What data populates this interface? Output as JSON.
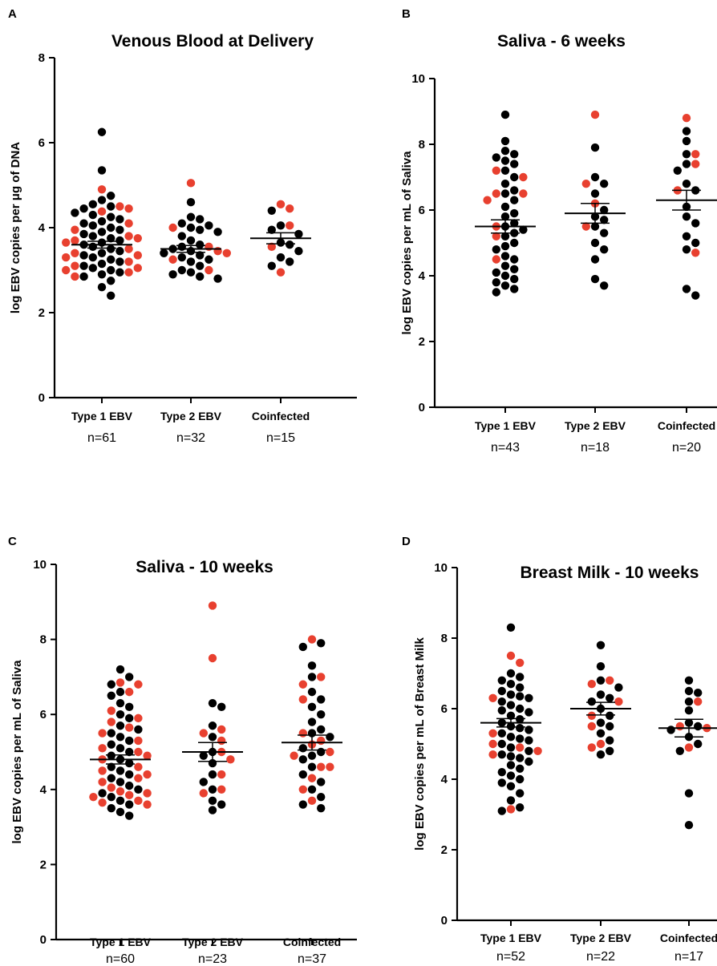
{
  "colors": {
    "black": "#000000",
    "red": "#e8402f"
  },
  "chart_data": [
    {
      "type": "scatter",
      "panel": "A",
      "title": "Venous Blood at Delivery",
      "ylabel": "log EBV copies per μg of DNA",
      "ylim": [
        0,
        8
      ],
      "yticks": [
        0,
        2,
        4,
        6,
        8
      ],
      "categories": [
        "Type 1 EBV",
        "Type 2 EBV",
        "Coinfected"
      ],
      "n_labels": [
        "n=61",
        "n=32",
        "n=15"
      ],
      "means": [
        3.6,
        3.5,
        3.75
      ],
      "sems": [
        0.08,
        0.08,
        0.13
      ],
      "groups": [
        {
          "black": [
            6.25,
            5.35,
            4.75,
            4.65,
            4.55,
            4.5,
            4.45,
            4.35,
            4.3,
            4.25,
            4.2,
            4.15,
            4.1,
            4.05,
            4.0,
            3.95,
            3.9,
            3.85,
            3.8,
            3.75,
            3.7,
            3.65,
            3.6,
            3.55,
            3.5,
            3.45,
            3.4,
            3.35,
            3.3,
            3.25,
            3.2,
            3.15,
            3.1,
            3.05,
            3.0,
            2.95,
            2.9,
            2.85,
            2.75,
            2.6,
            2.4
          ],
          "red": [
            4.9,
            4.5,
            4.45,
            4.38,
            4.1,
            3.95,
            3.8,
            3.75,
            3.7,
            3.65,
            3.5,
            3.4,
            3.3,
            3.2,
            3.1,
            3.05,
            3.0,
            2.95,
            2.85,
            3.35
          ]
        },
        {
          "black": [
            4.6,
            4.25,
            4.2,
            4.1,
            4.05,
            4.0,
            3.95,
            3.9,
            3.8,
            3.7,
            3.6,
            3.55,
            3.5,
            3.45,
            3.4,
            3.35,
            3.3,
            3.25,
            3.2,
            3.1,
            3.0,
            2.95,
            2.9,
            2.85,
            2.8
          ],
          "red": [
            5.05,
            4.0,
            3.55,
            3.45,
            3.4,
            3.25,
            3.0
          ]
        },
        {
          "black": [
            4.4,
            4.05,
            3.95,
            3.85,
            3.65,
            3.6,
            3.45,
            3.3,
            3.2,
            3.1
          ],
          "red": [
            4.55,
            4.45,
            4.05,
            3.55,
            2.95
          ]
        }
      ]
    },
    {
      "type": "scatter",
      "panel": "B",
      "title": "Saliva - 6 weeks",
      "ylabel": "log EBV copies per mL of Saliva",
      "ylim": [
        0,
        10
      ],
      "yticks": [
        0,
        2,
        4,
        6,
        8,
        10
      ],
      "categories": [
        "Type 1 EBV",
        "Type 2 EBV",
        "Coinfected"
      ],
      "n_labels": [
        "n=43",
        "n=18",
        "n=20"
      ],
      "means": [
        5.5,
        5.9,
        6.3
      ],
      "sems": [
        0.2,
        0.3,
        0.3
      ],
      "groups": [
        {
          "black": [
            8.9,
            8.1,
            7.8,
            7.7,
            7.6,
            7.5,
            7.4,
            7.2,
            7.0,
            6.8,
            6.6,
            6.5,
            6.3,
            6.1,
            5.9,
            5.8,
            5.6,
            5.5,
            5.4,
            5.3,
            5.2,
            5.0,
            4.9,
            4.8,
            4.6,
            4.5,
            4.3,
            4.2,
            4.1,
            4.0,
            3.9,
            3.8,
            3.7,
            3.6,
            3.5
          ],
          "red": [
            7.2,
            7.0,
            6.5,
            6.3,
            5.5,
            4.5,
            5.2,
            6.5
          ]
        },
        {
          "black": [
            7.9,
            7.0,
            6.8,
            6.5,
            6.0,
            5.8,
            5.7,
            5.5,
            5.3,
            5.0,
            4.8,
            4.5,
            3.9,
            3.7
          ],
          "red": [
            8.9,
            6.8,
            6.2,
            5.5
          ]
        },
        {
          "black": [
            8.4,
            8.1,
            7.7,
            7.4,
            7.2,
            6.8,
            6.6,
            6.1,
            5.8,
            5.6,
            5.2,
            5.0,
            4.8,
            3.6,
            3.4
          ],
          "red": [
            8.8,
            7.7,
            7.4,
            6.6,
            4.7
          ]
        }
      ]
    },
    {
      "type": "scatter",
      "panel": "C",
      "title": "Saliva - 10 weeks",
      "ylabel": "log EBV copies per mL of Saliva",
      "ylim": [
        0,
        10
      ],
      "yticks": [
        0,
        2,
        4,
        6,
        8,
        10
      ],
      "categories": [
        "Type 1 EBV",
        "Type 2 EBV",
        "Coinfected"
      ],
      "n_labels": [
        "n=60",
        "n=23",
        "n=37"
      ],
      "means": [
        4.8,
        5.0,
        5.25
      ],
      "sems": [
        0.12,
        0.25,
        0.2
      ],
      "groups": [
        {
          "black": [
            7.2,
            7.0,
            6.8,
            6.6,
            6.5,
            6.3,
            6.2,
            6.0,
            5.9,
            5.7,
            5.6,
            5.5,
            5.4,
            5.3,
            5.2,
            5.1,
            5.0,
            4.9,
            4.8,
            4.7,
            4.6,
            4.5,
            4.4,
            4.3,
            4.2,
            4.1,
            4.0,
            3.9,
            3.8,
            3.7,
            3.6,
            3.5,
            3.4,
            3.3
          ],
          "red": [
            6.85,
            6.8,
            6.6,
            6.1,
            5.8,
            5.65,
            5.3,
            5.1,
            5.0,
            4.8,
            4.6,
            4.4,
            4.2,
            4.05,
            3.9,
            3.8,
            3.7,
            3.6,
            3.95,
            4.5,
            5.5,
            4.3,
            3.85,
            4.9,
            5.9,
            3.65
          ]
        },
        {
          "black": [
            6.3,
            6.2,
            5.7,
            5.4,
            5.0,
            4.9,
            4.7,
            4.4,
            4.2,
            4.0,
            3.7,
            3.6,
            3.45
          ],
          "red": [
            8.9,
            7.5,
            5.6,
            5.5,
            5.3,
            5.0,
            4.8,
            4.4,
            4.0,
            3.9
          ]
        },
        {
          "black": [
            7.9,
            7.8,
            7.3,
            7.0,
            6.6,
            6.4,
            6.2,
            6.0,
            5.8,
            5.6,
            5.5,
            5.4,
            5.1,
            5.0,
            4.9,
            4.8,
            4.6,
            4.4,
            4.2,
            4.0,
            3.8,
            3.6,
            3.5
          ],
          "red": [
            8.0,
            7.0,
            6.8,
            6.4,
            5.5,
            5.3,
            5.2,
            5.0,
            4.9,
            4.6,
            4.3,
            4.0,
            3.7,
            4.6
          ]
        }
      ]
    },
    {
      "type": "scatter",
      "panel": "D",
      "title": "Breast Milk - 10 weeks",
      "ylabel": "log EBV copies per mL of Breast Milk",
      "ylim": [
        0,
        10
      ],
      "yticks": [
        0,
        2,
        4,
        6,
        8,
        10
      ],
      "categories": [
        "Type 1 EBV",
        "Type 2 EBV",
        "Coinfected"
      ],
      "n_labels": [
        "n=52",
        "n=22",
        "n=17"
      ],
      "means": [
        5.6,
        6.0,
        5.45
      ],
      "sems": [
        0.12,
        0.18,
        0.25
      ],
      "groups": [
        {
          "black": [
            8.3,
            7.0,
            6.9,
            6.8,
            6.7,
            6.6,
            6.5,
            6.4,
            6.3,
            6.2,
            6.1,
            6.0,
            5.9,
            5.8,
            5.7,
            5.6,
            5.5,
            5.4,
            5.3,
            5.2,
            5.1,
            5.0,
            4.9,
            4.8,
            4.7,
            4.6,
            4.5,
            4.4,
            4.3,
            4.2,
            4.1,
            4.0,
            3.9,
            3.8,
            3.6,
            3.4,
            3.1,
            3.2,
            5.45,
            6.35,
            5.95,
            4.65,
            5.15
          ],
          "red": [
            7.5,
            7.3,
            6.3,
            5.3,
            5.0,
            4.9,
            4.8,
            4.7,
            3.15
          ]
        },
        {
          "black": [
            7.8,
            7.2,
            6.8,
            6.6,
            6.4,
            6.3,
            6.2,
            6.0,
            5.8,
            5.6,
            5.5,
            5.3,
            5.1,
            4.8,
            4.7
          ],
          "red": [
            6.8,
            6.7,
            6.2,
            5.8,
            5.5,
            5.0,
            4.9
          ]
        },
        {
          "black": [
            6.8,
            6.5,
            6.45,
            6.2,
            5.95,
            5.6,
            5.5,
            5.4,
            5.2,
            5.0,
            4.8,
            3.6,
            2.7
          ],
          "red": [
            6.2,
            5.5,
            5.45,
            4.9
          ]
        }
      ]
    }
  ]
}
